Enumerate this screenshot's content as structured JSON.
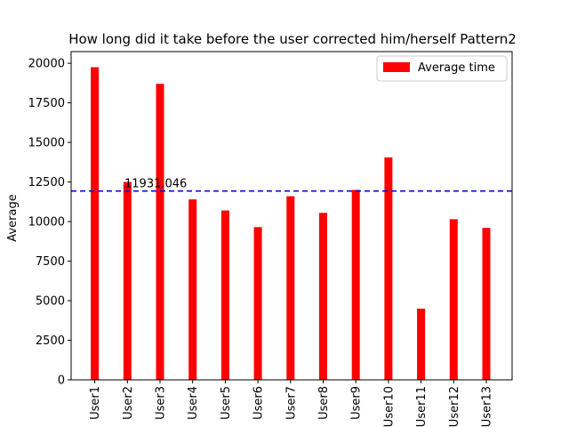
{
  "chart_data": {
    "type": "bar",
    "title": "How long did it take before the user corrected him/herself Pattern2",
    "xlabel": "",
    "ylabel": "Average",
    "categories": [
      "User1",
      "User2",
      "User3",
      "User4",
      "User5",
      "User6",
      "User7",
      "User8",
      "User9",
      "User10",
      "User11",
      "User12",
      "User13"
    ],
    "series": [
      {
        "name": "Average time",
        "color": "#ff0000",
        "values": [
          19750,
          12500,
          18700,
          11400,
          10700,
          9650,
          11600,
          10550,
          12000,
          14050,
          4500,
          10150,
          9600
        ]
      }
    ],
    "yticks": [
      0,
      2500,
      5000,
      7500,
      10000,
      12500,
      15000,
      17500,
      20000
    ],
    "ylim": [
      0,
      20737
    ],
    "reference_line": {
      "value": 11931.046,
      "label": "11931.046",
      "color": "#0000cc",
      "style": "dashed"
    },
    "legend": {
      "position": "top-right"
    },
    "grid": false
  }
}
